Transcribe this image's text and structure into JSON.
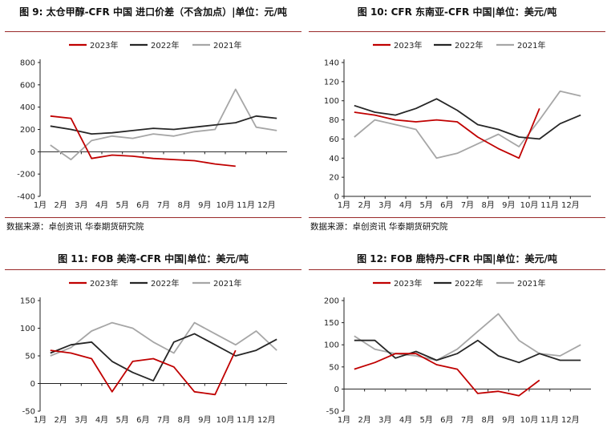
{
  "colors": {
    "s2023": "#c00000",
    "s2022": "#262626",
    "s2021": "#a6a6a6",
    "rule": "#9a2a2a"
  },
  "chart_data": [
    {
      "type": "line",
      "title": "图 9: 太仓甲醇-CFR 中国 进口价差（不含加点）|单位：元/吨",
      "source": "数据来源：卓创资讯 华泰期货研究院",
      "categories": [
        "1月",
        "2月",
        "3月",
        "4月",
        "5月",
        "6月",
        "7月",
        "8月",
        "9月",
        "10月",
        "11月",
        "12月"
      ],
      "ylim": [
        -400,
        800
      ],
      "yticks": [
        -400,
        -200,
        0,
        200,
        400,
        600,
        800
      ],
      "series": [
        {
          "name": "2023年",
          "values": [
            320,
            300,
            -60,
            -30,
            -40,
            -60,
            -70,
            -80,
            -110,
            -130,
            null,
            null
          ]
        },
        {
          "name": "2022年",
          "values": [
            230,
            200,
            160,
            170,
            190,
            210,
            200,
            220,
            240,
            260,
            320,
            300
          ]
        },
        {
          "name": "2021年",
          "values": [
            60,
            -70,
            100,
            140,
            120,
            160,
            140,
            180,
            200,
            560,
            220,
            190
          ]
        }
      ]
    },
    {
      "type": "line",
      "title": "图 10: CFR 东南亚-CFR 中国|单位：美元/吨",
      "source": "数据来源：卓创资讯 华泰期货研究院",
      "categories": [
        "1月",
        "2月",
        "3月",
        "4月",
        "5月",
        "6月",
        "7月",
        "8月",
        "9月",
        "10月",
        "11月",
        "12月"
      ],
      "ylim": [
        0,
        140
      ],
      "yticks": [
        0,
        20,
        40,
        60,
        80,
        100,
        120,
        140
      ],
      "series": [
        {
          "name": "2023年",
          "values": [
            88,
            85,
            80,
            78,
            80,
            78,
            62,
            50,
            40,
            92,
            null,
            null
          ]
        },
        {
          "name": "2022年",
          "values": [
            95,
            88,
            85,
            92,
            102,
            90,
            75,
            70,
            62,
            60,
            76,
            85
          ]
        },
        {
          "name": "2021年",
          "values": [
            62,
            80,
            75,
            70,
            40,
            45,
            55,
            65,
            52,
            80,
            110,
            105
          ]
        }
      ]
    },
    {
      "type": "line",
      "title": "图 11: FOB 美湾-CFR 中国|单位：美元/吨",
      "source": "",
      "categories": [
        "1月",
        "2月",
        "3月",
        "4月",
        "5月",
        "6月",
        "7月",
        "8月",
        "9月",
        "10月",
        "11月",
        "12月"
      ],
      "ylim": [
        -50,
        150
      ],
      "yticks": [
        -50,
        0,
        50,
        100,
        150
      ],
      "series": [
        {
          "name": "2023年",
          "values": [
            60,
            55,
            45,
            -15,
            40,
            45,
            30,
            -15,
            -20,
            60,
            null,
            null
          ]
        },
        {
          "name": "2022年",
          "values": [
            55,
            70,
            75,
            40,
            20,
            5,
            75,
            90,
            70,
            50,
            60,
            80
          ]
        },
        {
          "name": "2021年",
          "values": [
            50,
            65,
            95,
            110,
            100,
            75,
            55,
            110,
            90,
            70,
            95,
            60
          ]
        }
      ]
    },
    {
      "type": "line",
      "title": "图 12: FOB 鹿特丹-CFR 中国|单位：美元/吨",
      "source": "",
      "categories": [
        "1月",
        "2月",
        "3月",
        "4月",
        "5月",
        "6月",
        "7月",
        "8月",
        "9月",
        "10月",
        "11月",
        "12月"
      ],
      "ylim": [
        -50,
        200
      ],
      "yticks": [
        -50,
        0,
        50,
        100,
        150,
        200
      ],
      "series": [
        {
          "name": "2023年",
          "values": [
            45,
            60,
            80,
            80,
            55,
            45,
            -10,
            -5,
            -15,
            20,
            null,
            null
          ]
        },
        {
          "name": "2022年",
          "values": [
            110,
            110,
            70,
            85,
            65,
            80,
            110,
            75,
            60,
            80,
            65,
            65
          ]
        },
        {
          "name": "2021年",
          "values": [
            120,
            90,
            80,
            75,
            65,
            90,
            130,
            170,
            110,
            80,
            75,
            100
          ]
        }
      ]
    }
  ]
}
